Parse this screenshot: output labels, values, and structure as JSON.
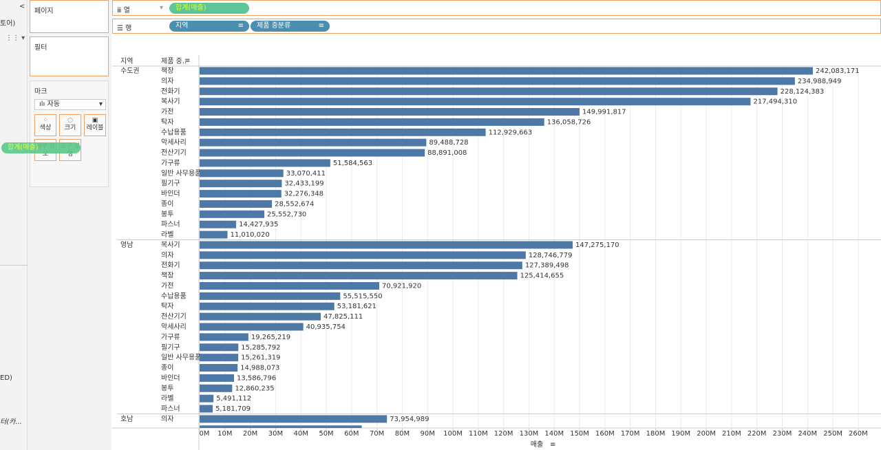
{
  "sidebar": {
    "fragments": [
      "토어)",
      "ED)",
      "터(카..."
    ]
  },
  "shelves": {
    "pages": "페이지",
    "filters": "필터",
    "columns": {
      "label": "열",
      "pills": [
        "합계(매출)"
      ]
    },
    "rows": {
      "label": "행",
      "pills": [
        "지역",
        "제품 중분류"
      ]
    }
  },
  "marks": {
    "title": "마크",
    "type": "자동",
    "buttons": [
      "색상",
      "크기",
      "레이블",
      "세부 정보",
      "도구 설명"
    ]
  },
  "drag_pill": "합계(매출)",
  "chart_data": {
    "type": "bar",
    "orientation": "horizontal",
    "color": "#4e79a7",
    "grid": true,
    "row_headers": [
      "지역",
      "제품 중.."
    ],
    "x_label": "매출",
    "xlim": [
      0,
      266000000
    ],
    "xticks": [
      {
        "value": 0,
        "label": "0M"
      },
      {
        "value": 10000000,
        "label": "10M"
      },
      {
        "value": 20000000,
        "label": "20M"
      },
      {
        "value": 30000000,
        "label": "30M"
      },
      {
        "value": 40000000,
        "label": "40M"
      },
      {
        "value": 50000000,
        "label": "50M"
      },
      {
        "value": 60000000,
        "label": "60M"
      },
      {
        "value": 70000000,
        "label": "70M"
      },
      {
        "value": 80000000,
        "label": "80M"
      },
      {
        "value": 90000000,
        "label": "90M"
      },
      {
        "value": 100000000,
        "label": "100M"
      },
      {
        "value": 110000000,
        "label": "110M"
      },
      {
        "value": 120000000,
        "label": "120M"
      },
      {
        "value": 130000000,
        "label": "130M"
      },
      {
        "value": 140000000,
        "label": "140M"
      },
      {
        "value": 150000000,
        "label": "150M"
      },
      {
        "value": 160000000,
        "label": "160M"
      },
      {
        "value": 170000000,
        "label": "170M"
      },
      {
        "value": 180000000,
        "label": "180M"
      },
      {
        "value": 190000000,
        "label": "190M"
      },
      {
        "value": 200000000,
        "label": "200M"
      },
      {
        "value": 210000000,
        "label": "210M"
      },
      {
        "value": 220000000,
        "label": "220M"
      },
      {
        "value": 230000000,
        "label": "230M"
      },
      {
        "value": 240000000,
        "label": "240M"
      },
      {
        "value": 250000000,
        "label": "250M"
      },
      {
        "value": 260000000,
        "label": "260M"
      }
    ],
    "groups": [
      {
        "name": "수도권",
        "categories": [
          "책장",
          "의자",
          "전화기",
          "복사기",
          "가전",
          "탁자",
          "수납용품",
          "악세사리",
          "전산기기",
          "가구류",
          "일반 사무용품",
          "필기구",
          "바인더",
          "종이",
          "봉투",
          "파스너",
          "라벨"
        ],
        "values": [
          242083171,
          234988949,
          228124383,
          217494310,
          149991817,
          136058726,
          112929663,
          89488728,
          88891008,
          51584563,
          33070411,
          32433199,
          32276348,
          28552674,
          25552730,
          14427935,
          11010020
        ],
        "value_labels": [
          "242,083,171",
          "234,988,949",
          "228,124,383",
          "217,494,310",
          "149,991,817",
          "136,058,726",
          "112,929,663",
          "89,488,728",
          "88,891,008",
          "51,584,563",
          "33,070,411",
          "32,433,199",
          "32,276,348",
          "28,552,674",
          "25,552,730",
          "14,427,935",
          "11,010,020"
        ]
      },
      {
        "name": "영남",
        "categories": [
          "복사기",
          "의자",
          "전화기",
          "책장",
          "가전",
          "수납용품",
          "탁자",
          "전산기기",
          "악세사리",
          "가구류",
          "필기구",
          "일반 사무용품",
          "종이",
          "바인더",
          "봉투",
          "라벨",
          "파스너"
        ],
        "values": [
          147275170,
          128746779,
          127389498,
          125414655,
          70921920,
          55515550,
          53181621,
          47825111,
          40935754,
          19265219,
          15285792,
          15261319,
          14988073,
          13586796,
          12860235,
          5491112,
          5181709
        ],
        "value_labels": [
          "147,275,170",
          "128,746,779",
          "127,389,498",
          "125,414,655",
          "70,921,920",
          "55,515,550",
          "53,181,621",
          "47,825,111",
          "40,935,754",
          "19,265,219",
          "15,285,792",
          "15,261,319",
          "14,988,073",
          "13,586,796",
          "12,860,235",
          "5,491,112",
          "5,181,709"
        ]
      },
      {
        "name": "호남",
        "categories": [
          "의자",
          null
        ],
        "values": [
          73954989,
          64000000
        ],
        "value_labels": [
          "73,954,989",
          null
        ]
      }
    ]
  }
}
